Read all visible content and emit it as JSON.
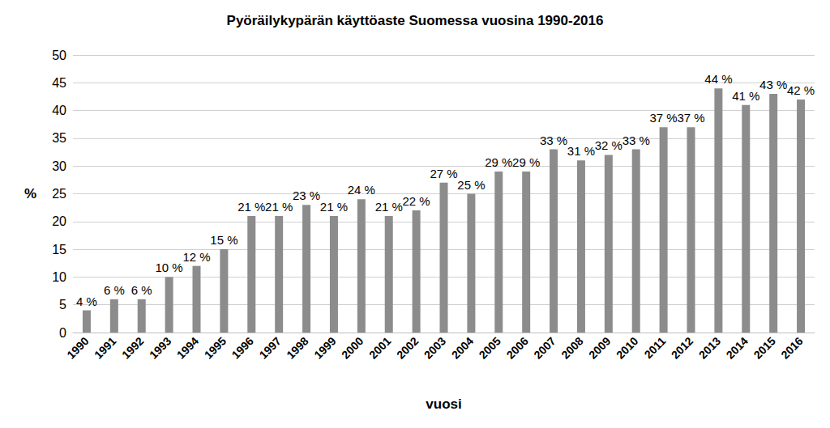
{
  "chart_data": {
    "type": "bar",
    "title": "Pyöräilykypärän käyttöaste Suomessa vuosina 1990-2016",
    "x_label": "vuosi",
    "y_label": "%",
    "categories": [
      "1990",
      "1991",
      "1992",
      "1993",
      "1994",
      "1995",
      "1996",
      "1997",
      "1998",
      "1999",
      "2000",
      "2001",
      "2002",
      "2003",
      "2004",
      "2005",
      "2006",
      "2007",
      "2008",
      "2009",
      "2010",
      "2011",
      "2012",
      "2013",
      "2014",
      "2015",
      "2016"
    ],
    "values": [
      4,
      6,
      6,
      10,
      12,
      15,
      21,
      21,
      23,
      21,
      24,
      21,
      22,
      27,
      25,
      29,
      29,
      33,
      31,
      32,
      33,
      37,
      37,
      44,
      41,
      43,
      42
    ],
    "value_labels": [
      "4 %",
      "6 %",
      "6 %",
      "10 %",
      "12 %",
      "15 %",
      "21 %",
      "21 %",
      "23 %",
      "21 %",
      "24 %",
      "21 %",
      "22 %",
      "27 %",
      "25 %",
      "29 %",
      "29 %",
      "33 %",
      "31 %",
      "32 %",
      "33 %",
      "37 %",
      "37 %",
      "44 %",
      "41 %",
      "43 %",
      "42 %"
    ],
    "color": "#8c8c8c",
    "ylim": [
      0,
      50
    ],
    "yticks": [
      0,
      5,
      10,
      15,
      20,
      25,
      30,
      35,
      40,
      45,
      50
    ],
    "grid": true,
    "data_labels": true
  }
}
